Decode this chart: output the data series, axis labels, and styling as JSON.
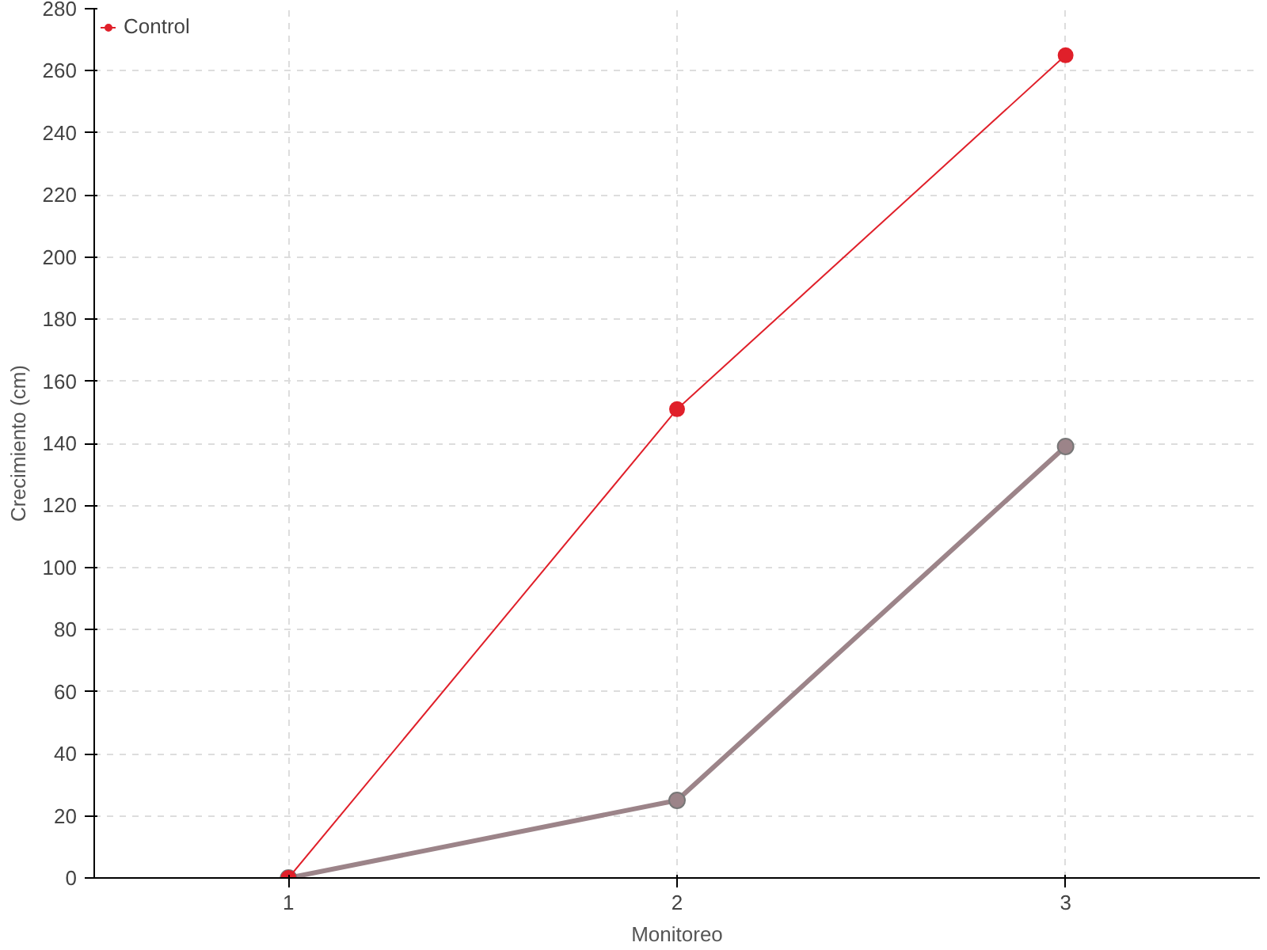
{
  "chart_data": {
    "type": "line",
    "xlabel": "Monitoreo",
    "ylabel": "Crecimiento (cm)",
    "categories": [
      "1",
      "2",
      "3"
    ],
    "series": [
      {
        "color": "#9c8489",
        "values": [
          0,
          25,
          139
        ]
      },
      {
        "name": "Control",
        "color": "#e0202a",
        "values": [
          0,
          151,
          265
        ]
      }
    ],
    "ylim": [
      0,
      280
    ],
    "yticks": [
      0,
      20,
      40,
      60,
      80,
      100,
      120,
      140,
      160,
      180,
      200,
      220,
      240,
      260,
      280
    ],
    "grid": true,
    "legend": "top left",
    "marker": "circle",
    "line_style": "solid"
  }
}
